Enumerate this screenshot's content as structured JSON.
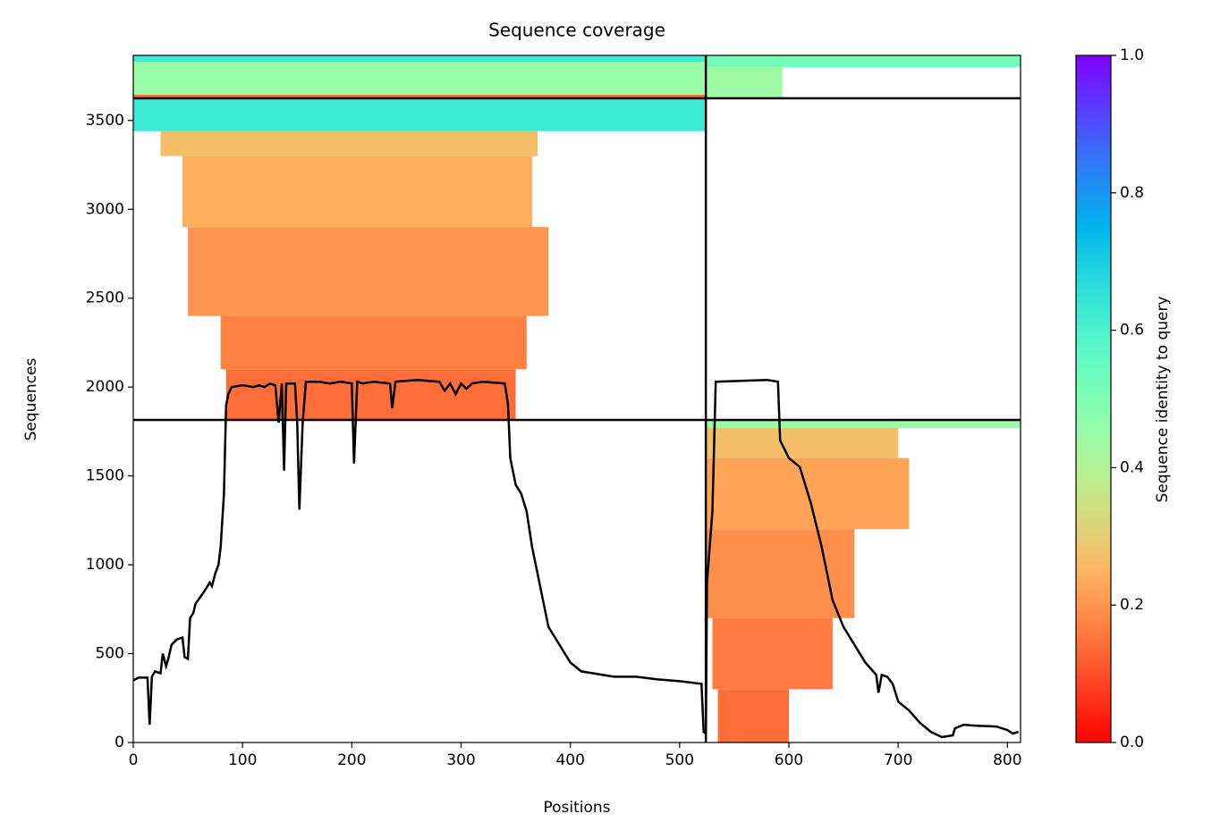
{
  "chart_data": {
    "type": "coverage",
    "title": "Sequence coverage",
    "x_label": "Positions",
    "y_label": "Sequences",
    "xlim": [
      0,
      812
    ],
    "ylim": [
      0,
      3866
    ],
    "xticks": [
      0,
      100,
      200,
      300,
      400,
      500,
      600,
      700,
      800
    ],
    "yticks": [
      0,
      500,
      1000,
      1500,
      2000,
      2500,
      3000,
      3500
    ],
    "colormap": "rainbow_r",
    "colorbar": {
      "label": "Sequence identity to query",
      "lim": [
        0,
        1
      ],
      "ticks": [
        {
          "value": 0,
          "label": "0.0"
        },
        0.2,
        0.4,
        0.6,
        0.8,
        {
          "value": 1,
          "label": "1.0"
        }
      ]
    },
    "x_boundaries": [
      524
    ],
    "y_boundaries": [
      1815,
      3625
    ],
    "blocks": [
      {
        "x": [
          0,
          524
        ],
        "y": [
          3625,
          3645
        ],
        "identity": 0.14
      },
      {
        "x": [
          0,
          524
        ],
        "y": [
          3645,
          3830
        ],
        "identity": 0.45
      },
      {
        "x": [
          0,
          524
        ],
        "y": [
          3830,
          3866
        ],
        "identity": 0.62
      },
      {
        "x": [
          525,
          594
        ],
        "y": [
          3625,
          3800
        ],
        "identity": 0.44
      },
      {
        "x": [
          525,
          812
        ],
        "y": [
          3800,
          3866
        ],
        "identity": 0.52
      },
      {
        "x": [
          0,
          524
        ],
        "y": [
          3440,
          3620
        ],
        "identity": 0.63
      },
      {
        "x": [
          25,
          370
        ],
        "y": [
          3300,
          3440
        ],
        "identity": 0.27
      },
      {
        "x": [
          45,
          365
        ],
        "y": [
          2900,
          3300
        ],
        "identity": 0.24
      },
      {
        "x": [
          50,
          380
        ],
        "y": [
          2400,
          2900
        ],
        "identity": 0.2
      },
      {
        "x": [
          80,
          360
        ],
        "y": [
          2100,
          2400
        ],
        "identity": 0.17
      },
      {
        "x": [
          85,
          350
        ],
        "y": [
          1815,
          2100
        ],
        "identity": 0.14
      },
      {
        "x": [
          525,
          812
        ],
        "y": [
          1770,
          1810
        ],
        "identity": 0.45
      },
      {
        "x": [
          525,
          700
        ],
        "y": [
          1600,
          1770
        ],
        "identity": 0.27
      },
      {
        "x": [
          525,
          710
        ],
        "y": [
          1200,
          1600
        ],
        "identity": 0.22
      },
      {
        "x": [
          525,
          660
        ],
        "y": [
          700,
          1200
        ],
        "identity": 0.19
      },
      {
        "x": [
          530,
          640
        ],
        "y": [
          300,
          700
        ],
        "identity": 0.16
      },
      {
        "x": [
          535,
          600
        ],
        "y": [
          0,
          300
        ],
        "identity": 0.14
      }
    ],
    "coverage": {
      "color": "#000000",
      "x": [
        0,
        5,
        13,
        15,
        17,
        20,
        25,
        27,
        30,
        32,
        35,
        40,
        45,
        47,
        50,
        52,
        55,
        57,
        65,
        70,
        72,
        75,
        78,
        80,
        83,
        85,
        87,
        90,
        100,
        110,
        115,
        120,
        125,
        130,
        133,
        136,
        138,
        140,
        148,
        150,
        152,
        155,
        158,
        170,
        180,
        190,
        200,
        202,
        205,
        210,
        220,
        235,
        237,
        240,
        260,
        280,
        285,
        290,
        295,
        300,
        305,
        310,
        320,
        340,
        343,
        345,
        350,
        355,
        360,
        365,
        370,
        375,
        380,
        390,
        400,
        410,
        420,
        430,
        440,
        460,
        480,
        500,
        520,
        522,
        524,
        525,
        530,
        533,
        580,
        590,
        592,
        600,
        610,
        620,
        630,
        640,
        650,
        660,
        670,
        680,
        682,
        685,
        690,
        695,
        700,
        710,
        720,
        730,
        740,
        750,
        752,
        760,
        770,
        790,
        800,
        805,
        810
      ],
      "values": [
        350,
        365,
        365,
        100,
        370,
        400,
        390,
        500,
        430,
        470,
        550,
        580,
        590,
        480,
        470,
        700,
        730,
        780,
        850,
        900,
        880,
        950,
        1000,
        1100,
        1400,
        1900,
        1960,
        2000,
        2010,
        2000,
        2010,
        2000,
        2020,
        2010,
        1800,
        2020,
        1530,
        2020,
        2020,
        1800,
        1310,
        1800,
        2030,
        2030,
        2020,
        2030,
        2020,
        1570,
        2030,
        2020,
        2030,
        2020,
        1880,
        2030,
        2040,
        2030,
        1980,
        2020,
        1960,
        2020,
        1990,
        2020,
        2030,
        2020,
        1900,
        1600,
        1450,
        1400,
        1300,
        1100,
        950,
        800,
        650,
        550,
        450,
        400,
        390,
        380,
        370,
        370,
        355,
        345,
        330,
        60,
        50,
        900,
        1300,
        2030,
        2040,
        2030,
        1700,
        1600,
        1550,
        1350,
        1100,
        800,
        650,
        550,
        450,
        380,
        280,
        380,
        370,
        330,
        230,
        180,
        110,
        60,
        30,
        40,
        80,
        100,
        95,
        90,
        70,
        50,
        60
      ]
    }
  }
}
